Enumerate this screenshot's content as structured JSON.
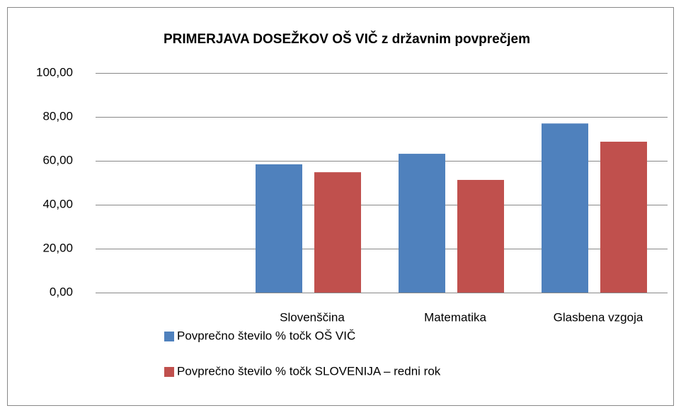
{
  "chart_data": {
    "type": "bar",
    "title": "PRIMERJAVA DOSEŽKOV OŠ VIČ z državnim  povprečjem",
    "categories": [
      null,
      "Slovenščina",
      "Matematika",
      "Glasbena vzgoja"
    ],
    "series": [
      {
        "name": "Povprečno število % točk OŠ VIČ",
        "color": "#4f81bd",
        "values": [
          null,
          58.4,
          63.2,
          77.0
        ]
      },
      {
        "name": "Povprečno število % točk SLOVENIJA – redni rok",
        "color": "#c0504d",
        "values": [
          null,
          54.8,
          51.3,
          68.7
        ]
      }
    ],
    "ylim": [
      0,
      100
    ],
    "yticks": [
      {
        "value": 0,
        "label": "0,00"
      },
      {
        "value": 20,
        "label": "20,00"
      },
      {
        "value": 40,
        "label": "40,00"
      },
      {
        "value": 60,
        "label": "60,00"
      },
      {
        "value": 80,
        "label": "80,00"
      },
      {
        "value": 100,
        "label": "100,00"
      }
    ],
    "grid": true,
    "legend": "bottom"
  }
}
